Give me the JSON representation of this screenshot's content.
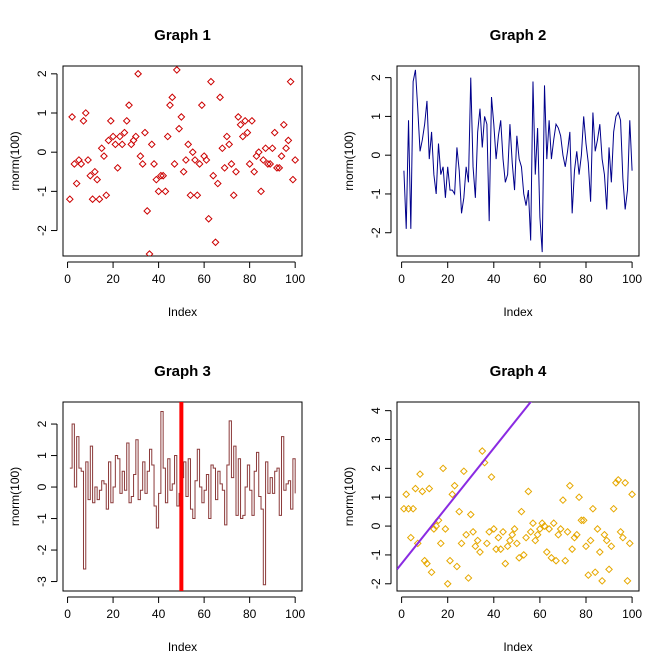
{
  "colors": {
    "red": "#cc0000",
    "navy": "#00008b",
    "brown": "#8b3a3a",
    "gold": "#e6a800",
    "purple": "#8a2be2",
    "thick_red": "#ff0000"
  },
  "chart_data": [
    {
      "type": "scatter",
      "title": "Graph 1",
      "xlabel": "Index",
      "ylabel": "rnorm(100)",
      "xlim": [
        -2,
        103
      ],
      "ylim": [
        -2.65,
        2.2
      ],
      "xticks": [
        0,
        20,
        40,
        60,
        80,
        100
      ],
      "yticks": [
        -2,
        -1,
        0,
        1,
        2
      ],
      "marker": "diamond",
      "color": "#cc0000",
      "x": [
        1,
        2,
        3,
        4,
        5,
        6,
        7,
        8,
        9,
        10,
        11,
        12,
        13,
        14,
        15,
        16,
        17,
        18,
        19,
        20,
        21,
        22,
        23,
        24,
        25,
        26,
        27,
        28,
        29,
        30,
        31,
        32,
        33,
        34,
        35,
        36,
        37,
        38,
        39,
        40,
        41,
        42,
        43,
        44,
        45,
        46,
        47,
        48,
        49,
        50,
        51,
        52,
        53,
        54,
        55,
        56,
        57,
        58,
        59,
        60,
        61,
        62,
        63,
        64,
        65,
        66,
        67,
        68,
        69,
        70,
        71,
        72,
        73,
        74,
        75,
        76,
        77,
        78,
        79,
        80,
        81,
        82,
        83,
        84,
        85,
        86,
        87,
        88,
        89,
        90,
        91,
        92,
        93,
        94,
        95,
        96,
        97,
        98,
        99,
        100
      ],
      "y": [
        -1.2,
        0.9,
        -0.3,
        -0.8,
        -0.2,
        -0.3,
        0.8,
        1.0,
        -0.2,
        -0.6,
        -1.2,
        -0.5,
        -0.7,
        -1.2,
        0.1,
        -0.1,
        -1.1,
        0.3,
        0.8,
        0.4,
        0.2,
        -0.4,
        0.4,
        0.2,
        0.5,
        0.8,
        1.2,
        0.2,
        0.3,
        0.4,
        2.0,
        -0.1,
        -0.3,
        0.5,
        -1.5,
        -2.6,
        0.2,
        -0.3,
        -0.7,
        -1.0,
        -0.6,
        -0.6,
        -1.0,
        0.4,
        1.2,
        1.4,
        -0.3,
        2.1,
        0.6,
        0.9,
        -0.5,
        -0.2,
        0.2,
        -1.1,
        0.0,
        -0.2,
        -1.1,
        -0.3,
        1.2,
        -0.1,
        -0.2,
        -1.7,
        1.8,
        -0.6,
        -2.3,
        -0.8,
        1.4,
        0.1,
        -0.4,
        0.4,
        0.2,
        -0.3,
        -1.1,
        -0.5,
        0.9,
        0.7,
        0.4,
        0.8,
        0.5,
        -0.3,
        0.8,
        -0.5,
        -0.1,
        0.0,
        -1.0,
        -0.2,
        0.1,
        -0.3,
        -0.3,
        0.1,
        0.5,
        -0.4,
        -0.4,
        -0.1,
        0.7,
        0.1,
        0.3,
        1.8,
        -0.7,
        -0.2
      ]
    },
    {
      "type": "line",
      "title": "Graph 2",
      "xlabel": "Index",
      "ylabel": "rnorm(100)",
      "xlim": [
        -2,
        103
      ],
      "ylim": [
        -2.6,
        2.3
      ],
      "xticks": [
        0,
        20,
        40,
        60,
        80,
        100
      ],
      "yticks": [
        -2,
        -1,
        0,
        1,
        2
      ],
      "color": "#00008b",
      "x": [
        1,
        2,
        3,
        4,
        5,
        6,
        7,
        8,
        9,
        10,
        11,
        12,
        13,
        14,
        15,
        16,
        17,
        18,
        19,
        20,
        21,
        22,
        23,
        24,
        25,
        26,
        27,
        28,
        29,
        30,
        31,
        32,
        33,
        34,
        35,
        36,
        37,
        38,
        39,
        40,
        41,
        42,
        43,
        44,
        45,
        46,
        47,
        48,
        49,
        50,
        51,
        52,
        53,
        54,
        55,
        56,
        57,
        58,
        59,
        60,
        61,
        62,
        63,
        64,
        65,
        66,
        67,
        68,
        69,
        70,
        71,
        72,
        73,
        74,
        75,
        76,
        77,
        78,
        79,
        80,
        81,
        82,
        83,
        84,
        85,
        86,
        87,
        88,
        89,
        90,
        91,
        92,
        93,
        94,
        95,
        96,
        97,
        98,
        99,
        100
      ],
      "y": [
        -0.4,
        -1.9,
        0.9,
        -1.9,
        1.9,
        2.2,
        1.2,
        0.1,
        0.4,
        0.8,
        1.4,
        -0.1,
        0.6,
        -0.5,
        -1.0,
        0.3,
        -0.5,
        -0.3,
        -1.1,
        -0.3,
        -0.9,
        -0.9,
        -1.0,
        0.2,
        -0.4,
        -1.5,
        -1.1,
        -0.3,
        -0.7,
        2.0,
        -0.3,
        -1.1,
        0.6,
        1.2,
        0.2,
        1.0,
        0.8,
        -1.7,
        1.5,
        0.8,
        -0.1,
        0.5,
        0.9,
        -0.1,
        -0.7,
        -0.5,
        0.8,
        -0.2,
        -0.9,
        0.5,
        -0.1,
        -0.3,
        -1.0,
        -1.3,
        -0.9,
        -2.2,
        1.9,
        -0.5,
        0.7,
        -1.6,
        -2.5,
        1.8,
        -0.1,
        0.9,
        -0.1,
        0.4,
        0.8,
        0.7,
        0.5,
        0.0,
        -0.3,
        0.1,
        0.6,
        -1.5,
        -0.4,
        0.1,
        -0.5,
        0.0,
        1.0,
        0.3,
        -0.2,
        -1.2,
        1.1,
        0.1,
        0.4,
        0.8,
        -0.1,
        -0.5,
        -1.4,
        0.2,
        -0.7,
        0.6,
        1.0,
        1.1,
        0.9,
        -0.6,
        -1.4,
        -0.9,
        0.9,
        -0.4
      ]
    },
    {
      "type": "line",
      "step": true,
      "title": "Graph 3",
      "xlabel": "Index",
      "ylabel": "rnorm(100)",
      "xlim": [
        -2,
        103
      ],
      "ylim": [
        -3.3,
        2.7
      ],
      "xticks": [
        0,
        20,
        40,
        60,
        80,
        100
      ],
      "yticks": [
        -3,
        -2,
        -1,
        0,
        1,
        2
      ],
      "color": "#8b3a3a",
      "vline": {
        "x": 50,
        "color": "#ff0000"
      },
      "x": [
        1,
        2,
        3,
        4,
        5,
        6,
        7,
        8,
        9,
        10,
        11,
        12,
        13,
        14,
        15,
        16,
        17,
        18,
        19,
        20,
        21,
        22,
        23,
        24,
        25,
        26,
        27,
        28,
        29,
        30,
        31,
        32,
        33,
        34,
        35,
        36,
        37,
        38,
        39,
        40,
        41,
        42,
        43,
        44,
        45,
        46,
        47,
        48,
        49,
        50,
        51,
        52,
        53,
        54,
        55,
        56,
        57,
        58,
        59,
        60,
        61,
        62,
        63,
        64,
        65,
        66,
        67,
        68,
        69,
        70,
        71,
        72,
        73,
        74,
        75,
        76,
        77,
        78,
        79,
        80,
        81,
        82,
        83,
        84,
        85,
        86,
        87,
        88,
        89,
        90,
        91,
        92,
        93,
        94,
        95,
        96,
        97,
        98,
        99,
        100
      ],
      "y": [
        0.6,
        2.0,
        0.0,
        1.6,
        0.6,
        0.5,
        -2.6,
        0.8,
        -0.4,
        1.3,
        -0.5,
        0.0,
        -0.4,
        -0.1,
        0.2,
        0.1,
        -0.7,
        0.8,
        -0.5,
        0.0,
        1.0,
        0.9,
        -0.2,
        0.5,
        -0.1,
        1.4,
        -0.5,
        -0.3,
        0.4,
        1.5,
        -0.4,
        -0.1,
        0.8,
        -0.2,
        0.5,
        1.2,
        0.7,
        -0.6,
        -1.3,
        -0.2,
        2.4,
        0.6,
        -0.5,
        0.9,
        -0.1,
        0.1,
        1.0,
        -0.6,
        -0.2,
        0.3,
        0.8,
        -0.3,
        0.9,
        -0.7,
        -1.0,
        0.2,
        1.2,
        0.0,
        -0.5,
        -0.1,
        0.4,
        -1.0,
        0.7,
        0.6,
        -0.4,
        0.5,
        0.1,
        -0.1,
        -1.2,
        0.7,
        2.1,
        0.3,
        1.3,
        -0.9,
        0.9,
        -1.0,
        -0.9,
        0.0,
        0.7,
        -0.1,
        -0.9,
        0.5,
        1.1,
        -0.3,
        -0.7,
        -3.1,
        0.8,
        -0.2,
        0.3,
        -0.2,
        0.5,
        0.6,
        -0.9,
        1.6,
        -0.1,
        0.1,
        0.2,
        -0.7,
        0.9,
        -0.2
      ]
    },
    {
      "type": "scatter",
      "title": "Graph 4",
      "xlabel": "Index",
      "ylabel": "rnorm(100)",
      "xlim": [
        -2,
        103
      ],
      "ylim": [
        -2.25,
        4.3
      ],
      "xticks": [
        0,
        20,
        40,
        60,
        80,
        100
      ],
      "yticks": [
        -2,
        -1,
        0,
        1,
        2,
        3,
        4
      ],
      "marker": "diamond",
      "color": "#e6a800",
      "abline": {
        "intercept": -1.3,
        "slope": 0.1,
        "color": "#8a2be2"
      },
      "x": [
        1,
        2,
        3,
        4,
        5,
        6,
        7,
        8,
        9,
        10,
        11,
        12,
        13,
        14,
        15,
        16,
        17,
        18,
        19,
        20,
        21,
        22,
        23,
        24,
        25,
        26,
        27,
        28,
        29,
        30,
        31,
        32,
        33,
        34,
        35,
        36,
        37,
        38,
        39,
        40,
        41,
        42,
        43,
        44,
        45,
        46,
        47,
        48,
        49,
        50,
        51,
        52,
        53,
        54,
        55,
        56,
        57,
        58,
        59,
        60,
        61,
        62,
        63,
        64,
        65,
        66,
        67,
        68,
        69,
        70,
        71,
        72,
        73,
        74,
        75,
        76,
        77,
        78,
        79,
        80,
        81,
        82,
        83,
        84,
        85,
        86,
        87,
        88,
        89,
        90,
        91,
        92,
        93,
        94,
        95,
        96,
        97,
        98,
        99,
        100
      ],
      "y": [
        0.6,
        1.1,
        0.6,
        -0.4,
        0.6,
        1.3,
        -0.6,
        1.8,
        1.2,
        -1.2,
        -1.3,
        1.3,
        -1.6,
        -0.1,
        0.0,
        0.2,
        -0.6,
        2.0,
        -0.1,
        -2.0,
        -1.2,
        1.1,
        1.4,
        -1.4,
        0.5,
        -0.6,
        1.9,
        -0.3,
        -1.8,
        0.4,
        -0.2,
        -0.7,
        -0.5,
        -0.9,
        2.6,
        2.2,
        -0.6,
        -0.2,
        1.7,
        -0.1,
        -0.8,
        -0.4,
        -0.8,
        -0.2,
        -1.3,
        -0.7,
        -0.5,
        -0.3,
        -0.1,
        -0.6,
        -1.1,
        0.5,
        -1.0,
        -0.4,
        1.2,
        -0.2,
        0.1,
        -0.5,
        -0.3,
        -0.1,
        0.1,
        0.0,
        -0.9,
        -0.1,
        -1.1,
        0.1,
        -1.2,
        -0.3,
        -0.1,
        0.9,
        -1.2,
        -0.2,
        1.4,
        -0.8,
        -0.4,
        -0.3,
        1.0,
        0.2,
        0.2,
        -0.7,
        -1.7,
        -0.5,
        0.6,
        -1.6,
        -0.1,
        -0.9,
        -1.9,
        -0.3,
        -0.5,
        -1.5,
        -0.7,
        0.6,
        1.5,
        1.6,
        -0.2,
        -0.4,
        1.5,
        -1.9,
        -0.6,
        1.1
      ]
    }
  ]
}
